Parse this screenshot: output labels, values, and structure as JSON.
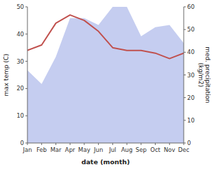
{
  "chart_data": {
    "type": "line",
    "categories": [
      "Jan",
      "Feb",
      "Mar",
      "Apr",
      "May",
      "Jun",
      "Jul",
      "Aug",
      "Sep",
      "Oct",
      "Nov",
      "Dec"
    ],
    "series": [
      {
        "type": "area",
        "axis": "y2",
        "color": "#c5cdf0",
        "values": [
          32,
          26,
          38,
          55,
          55,
          52,
          60,
          60,
          47,
          51,
          52,
          44
        ]
      },
      {
        "type": "line",
        "color": "#c0504d",
        "values": [
          34,
          36,
          44,
          47,
          45,
          41,
          35,
          34,
          34,
          33,
          31,
          33
        ]
      }
    ],
    "xlabel": "date (month)",
    "ylabel": "max temp (C)",
    "y2label": "med. precipitation\n(kg/m2)",
    "ylim": [
      0,
      50
    ],
    "yticks": [
      0,
      10,
      20,
      30,
      40,
      50
    ],
    "y2lim": [
      0,
      60
    ],
    "y2ticks": [
      0,
      10,
      20,
      30,
      40,
      50,
      60
    ]
  }
}
